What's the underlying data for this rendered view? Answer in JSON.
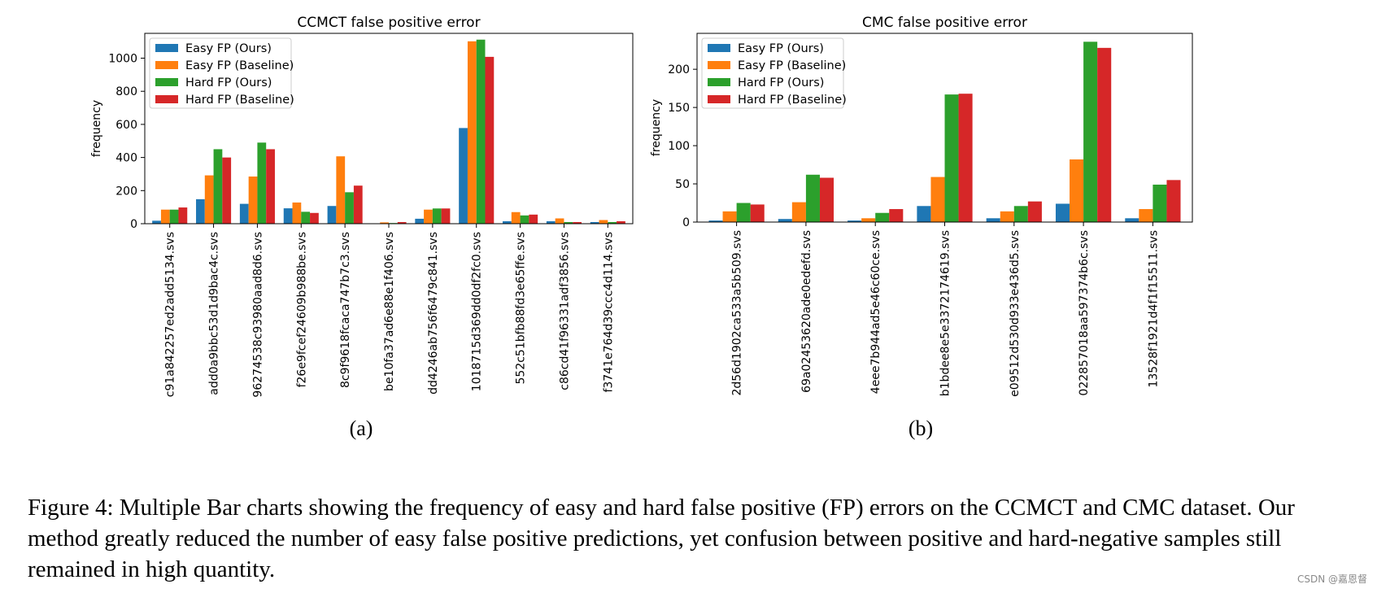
{
  "chart_data": [
    {
      "type": "bar",
      "panel_label": "(a)",
      "title": "CCMCT false positive error",
      "xlabel": "",
      "ylabel": "frequency",
      "ylim": [
        0,
        1150
      ],
      "yticks": [
        0,
        200,
        400,
        600,
        800,
        1000
      ],
      "legend_position": "top-left",
      "categories": [
        "c91a842257ed2add5134.svs",
        "add0a9bbc53d1d9bac4c.svs",
        "96274538c93980aad8d6.svs",
        "f26e9fcef24609b988be.svs",
        "8c9f9618fcaca747b7c3.svs",
        "be10fa37ad6e88e1f406.svs",
        "dd4246ab756f6479c841.svs",
        "1018715d369dd0df2fc0.svs",
        "552c51bfb88fd3e65ffe.svs",
        "c86cd41f96331adf3856.svs",
        "f3741e764d39ccc4d114.svs"
      ],
      "series": [
        {
          "name": "Easy FP (Ours)",
          "color": "#1f77b4",
          "values": [
            18,
            148,
            120,
            93,
            107,
            2,
            30,
            578,
            15,
            15,
            10
          ]
        },
        {
          "name": "Easy FP (Baseline)",
          "color": "#ff7f0e",
          "values": [
            85,
            292,
            285,
            128,
            407,
            8,
            85,
            1102,
            70,
            32,
            22
          ]
        },
        {
          "name": "Hard FP (Ours)",
          "color": "#2ca02c",
          "values": [
            85,
            450,
            490,
            72,
            190,
            4,
            92,
            1112,
            50,
            10,
            10
          ]
        },
        {
          "name": "Hard FP (Baseline)",
          "color": "#d62728",
          "values": [
            98,
            400,
            450,
            65,
            230,
            10,
            92,
            1008,
            55,
            10,
            15
          ]
        }
      ]
    },
    {
      "type": "bar",
      "panel_label": "(b)",
      "title": "CMC false positive error",
      "xlabel": "",
      "ylabel": "frequency",
      "ylim": [
        0,
        247
      ],
      "yticks": [
        0,
        50,
        100,
        150,
        200
      ],
      "legend_position": "top-left",
      "categories": [
        "2d56d1902ca533a5b509.svs",
        "69a02453620ade0edefd.svs",
        "4eee7b944ad5e46c60ce.svs",
        "b1bdee8e5e3372174619.svs",
        "e09512d530d933e436d5.svs",
        "022857018aa597374b6c.svs",
        "13528f1921d4f1f15511.svs"
      ],
      "series": [
        {
          "name": "Easy FP (Ours)",
          "color": "#1f77b4",
          "values": [
            2,
            4,
            2,
            21,
            5,
            24,
            5
          ]
        },
        {
          "name": "Easy FP (Baseline)",
          "color": "#ff7f0e",
          "values": [
            14,
            26,
            5,
            59,
            14,
            82,
            17
          ]
        },
        {
          "name": "Hard FP (Ours)",
          "color": "#2ca02c",
          "values": [
            25,
            62,
            12,
            167,
            21,
            236,
            49
          ]
        },
        {
          "name": "Hard FP (Baseline)",
          "color": "#d62728",
          "values": [
            23,
            58,
            17,
            168,
            27,
            228,
            55
          ]
        }
      ]
    }
  ],
  "caption": "Figure 4: Multiple Bar charts showing the frequency of easy and hard false positive (FP) errors on the CCMCT and CMC dataset. Our method greatly reduced the number of easy false positive predictions, yet confusion between positive and hard-negative samples still remained in high quantity.",
  "watermark": "CSDN @嘉恩督"
}
